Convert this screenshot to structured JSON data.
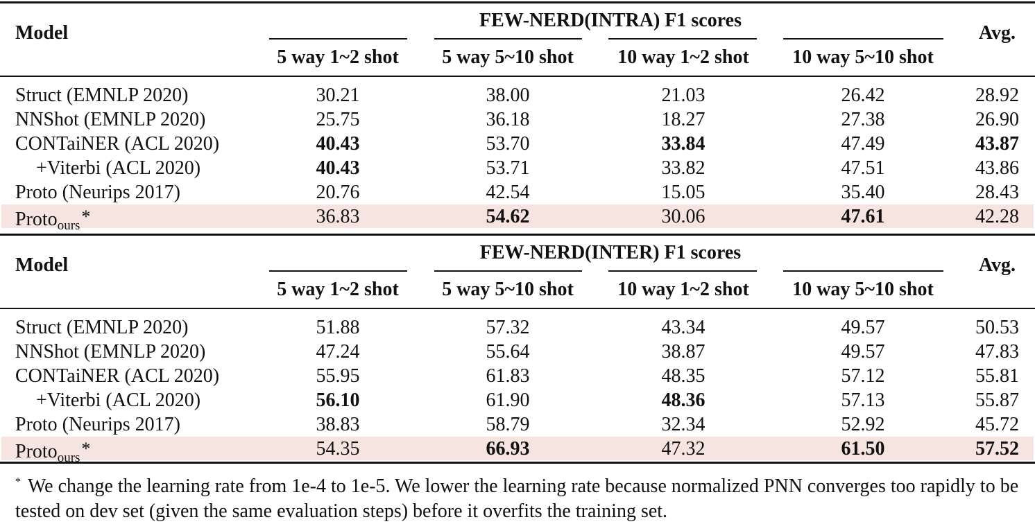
{
  "columns": {
    "model": "Model",
    "avg": "Avg.",
    "settings": [
      "5 way 1~2 shot",
      "5 way 5~10 shot",
      "10 way 1~2 shot",
      "10 way 5~10 shot"
    ]
  },
  "intra": {
    "title": "FEW-NERD(INTRA) F1 scores",
    "rows": [
      {
        "model": "Struct (EMNLP 2020)",
        "values": [
          "30.21",
          "38.00",
          "21.03",
          "26.42",
          "28.92"
        ],
        "bold": [
          false,
          false,
          false,
          false,
          false
        ]
      },
      {
        "model": "NNShot (EMNLP 2020)",
        "values": [
          "25.75",
          "36.18",
          "18.27",
          "27.38",
          "26.90"
        ],
        "bold": [
          false,
          false,
          false,
          false,
          false
        ]
      },
      {
        "model": "CONTaiNER (ACL 2020)",
        "values": [
          "40.43",
          "53.70",
          "33.84",
          "47.49",
          "43.87"
        ],
        "bold": [
          true,
          false,
          true,
          false,
          true
        ]
      },
      {
        "model": "+Viterbi (ACL 2020)",
        "values": [
          "40.43",
          "53.71",
          "33.82",
          "47.51",
          "43.86"
        ],
        "bold": [
          true,
          false,
          false,
          false,
          false
        ]
      },
      {
        "model": "Proto (Neurips 2017)",
        "values": [
          "20.76",
          "42.54",
          "15.05",
          "35.40",
          "28.43"
        ],
        "bold": [
          false,
          false,
          false,
          false,
          false
        ]
      }
    ],
    "ours": {
      "model_base": "Proto",
      "model_sub": "ours",
      "model_mark": "*",
      "values": [
        "36.83",
        "54.62",
        "30.06",
        "47.61",
        "42.28"
      ],
      "bold": [
        false,
        true,
        false,
        true,
        false
      ]
    }
  },
  "inter": {
    "title": "FEW-NERD(INTER) F1 scores",
    "rows": [
      {
        "model": "Struct (EMNLP 2020)",
        "values": [
          "51.88",
          "57.32",
          "43.34",
          "49.57",
          "50.53"
        ],
        "bold": [
          false,
          false,
          false,
          false,
          false
        ]
      },
      {
        "model": "NNShot (EMNLP 2020)",
        "values": [
          "47.24",
          "55.64",
          "38.87",
          "49.57",
          "47.83"
        ],
        "bold": [
          false,
          false,
          false,
          false,
          false
        ]
      },
      {
        "model": "CONTaiNER (ACL 2020)",
        "values": [
          "55.95",
          "61.83",
          "48.35",
          "57.12",
          "55.81"
        ],
        "bold": [
          false,
          false,
          false,
          false,
          false
        ]
      },
      {
        "model": "+Viterbi (ACL 2020)",
        "values": [
          "56.10",
          "61.90",
          "48.36",
          "57.13",
          "55.87"
        ],
        "bold": [
          true,
          false,
          true,
          false,
          false
        ]
      },
      {
        "model": "Proto (Neurips 2017)",
        "values": [
          "38.83",
          "58.79",
          "32.34",
          "52.92",
          "45.72"
        ],
        "bold": [
          false,
          false,
          false,
          false,
          false
        ]
      }
    ],
    "ours": {
      "model_base": "Proto",
      "model_sub": "ours",
      "model_mark": "*",
      "values": [
        "54.35",
        "66.93",
        "47.32",
        "61.50",
        "57.52"
      ],
      "bold": [
        false,
        true,
        false,
        true,
        true
      ]
    }
  },
  "footnote": {
    "mark": "*",
    "text": "We change the learning rate from 1e-4 to 1e-5. We lower the learning rate because normalized PNN converges too rapidly to be tested on dev set (given the same evaluation steps) before it overfits the training set."
  }
}
